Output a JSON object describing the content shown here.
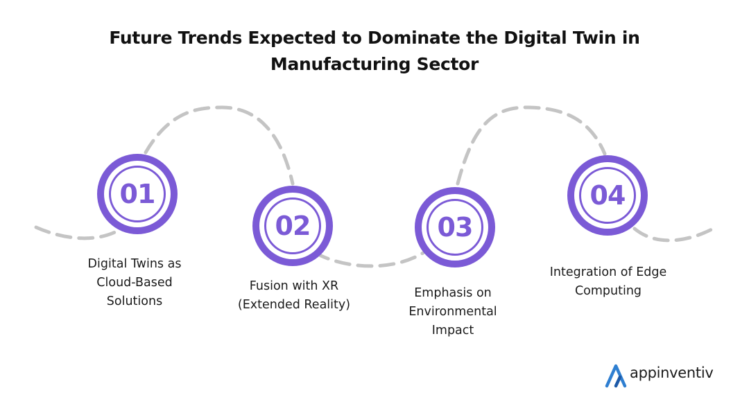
{
  "title": {
    "line1": "Future Trends Expected to Dominate the Digital Twin in",
    "line2": "Manufacturing Sector"
  },
  "steps": [
    {
      "number": "01",
      "label_lines": [
        "Digital Twins as",
        "Cloud-Based",
        "Solutions"
      ]
    },
    {
      "number": "02",
      "label_lines": [
        "Fusion with XR",
        "(Extended Reality)"
      ]
    },
    {
      "number": "03",
      "label_lines": [
        "Emphasis on",
        "Environmental",
        "Impact"
      ]
    },
    {
      "number": "04",
      "label_lines": [
        "Integration of Edge",
        "Computing"
      ]
    }
  ],
  "brand": {
    "name": "appinventiv",
    "logo_icon": "appinventiv-logo-icon"
  },
  "colors": {
    "accent": "#7b5ad6",
    "dashed_path": "#c4c4c4",
    "logo_blue": "#2f7fd1",
    "text": "#1a1a1a"
  }
}
